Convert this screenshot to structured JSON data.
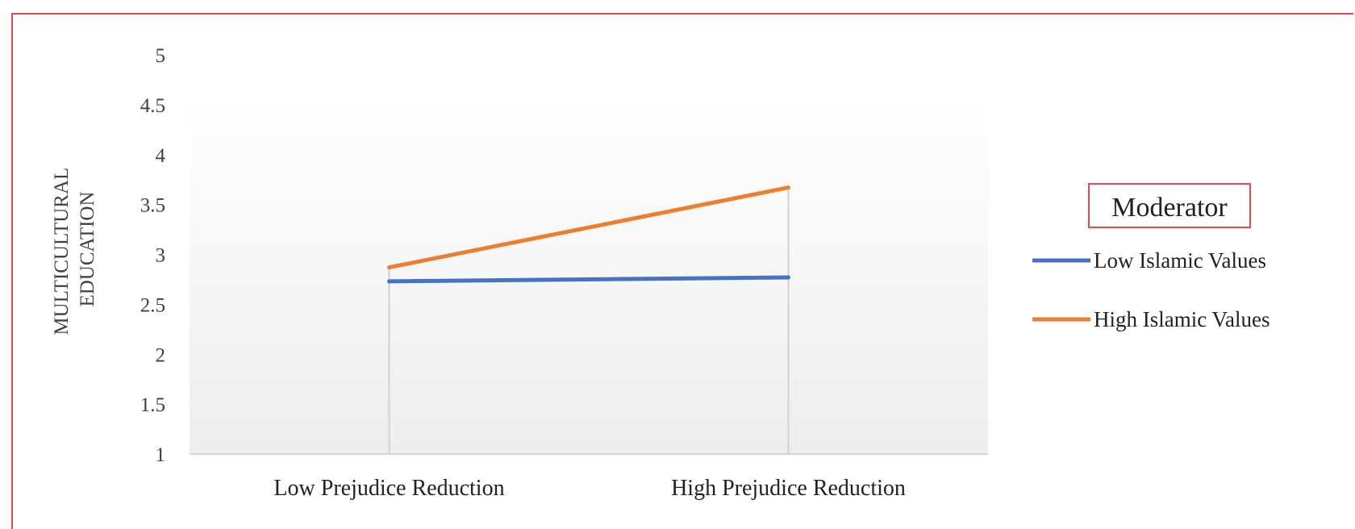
{
  "chart_data": {
    "type": "line",
    "categories": [
      "Low Prejudice Reduction",
      "High Prejudice Reduction"
    ],
    "series": [
      {
        "name": "Low Islamic Values",
        "values": [
          2.73,
          2.77
        ],
        "color": "#4472c4"
      },
      {
        "name": "High Islamic Values",
        "values": [
          2.87,
          3.67
        ],
        "color": "#ed7d31"
      }
    ],
    "ylabel_lines": [
      "MULTICULTURAL",
      "EDUCATION"
    ],
    "xlabel": "",
    "ylim": [
      1,
      5
    ],
    "yticks": [
      1,
      1.5,
      2,
      2.5,
      3,
      3.5,
      4,
      4.5,
      5
    ],
    "legend_title": "Moderator",
    "legend_position": "right",
    "grid": false,
    "frame_color": "#e8474e"
  }
}
